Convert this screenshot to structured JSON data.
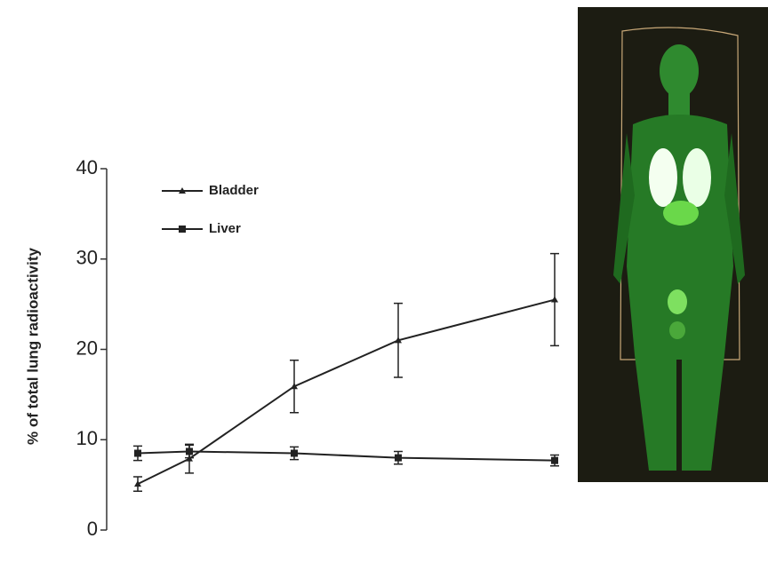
{
  "chart_data": {
    "type": "line",
    "y_label": "% of total lung radioactivity",
    "categories": [
      null,
      null,
      null,
      null,
      null
    ],
    "series": [
      {
        "name": "Bladder",
        "color": "#222222",
        "marker": "triangle",
        "values": [
          5.1,
          7.9,
          15.9,
          21.0,
          25.5
        ],
        "errors": [
          0.8,
          1.6,
          2.9,
          4.1,
          5.1
        ]
      },
      {
        "name": "Liver",
        "color": "#222222",
        "marker": "square",
        "values": [
          8.5,
          8.7,
          8.5,
          8.0,
          7.7
        ],
        "errors": [
          0.8,
          0.7,
          0.7,
          0.7,
          0.6
        ]
      }
    ],
    "ylim": [
      0,
      40
    ],
    "yticks": [
      0,
      10,
      20,
      30,
      40
    ],
    "grid": false,
    "legend": "upper-left"
  }
}
